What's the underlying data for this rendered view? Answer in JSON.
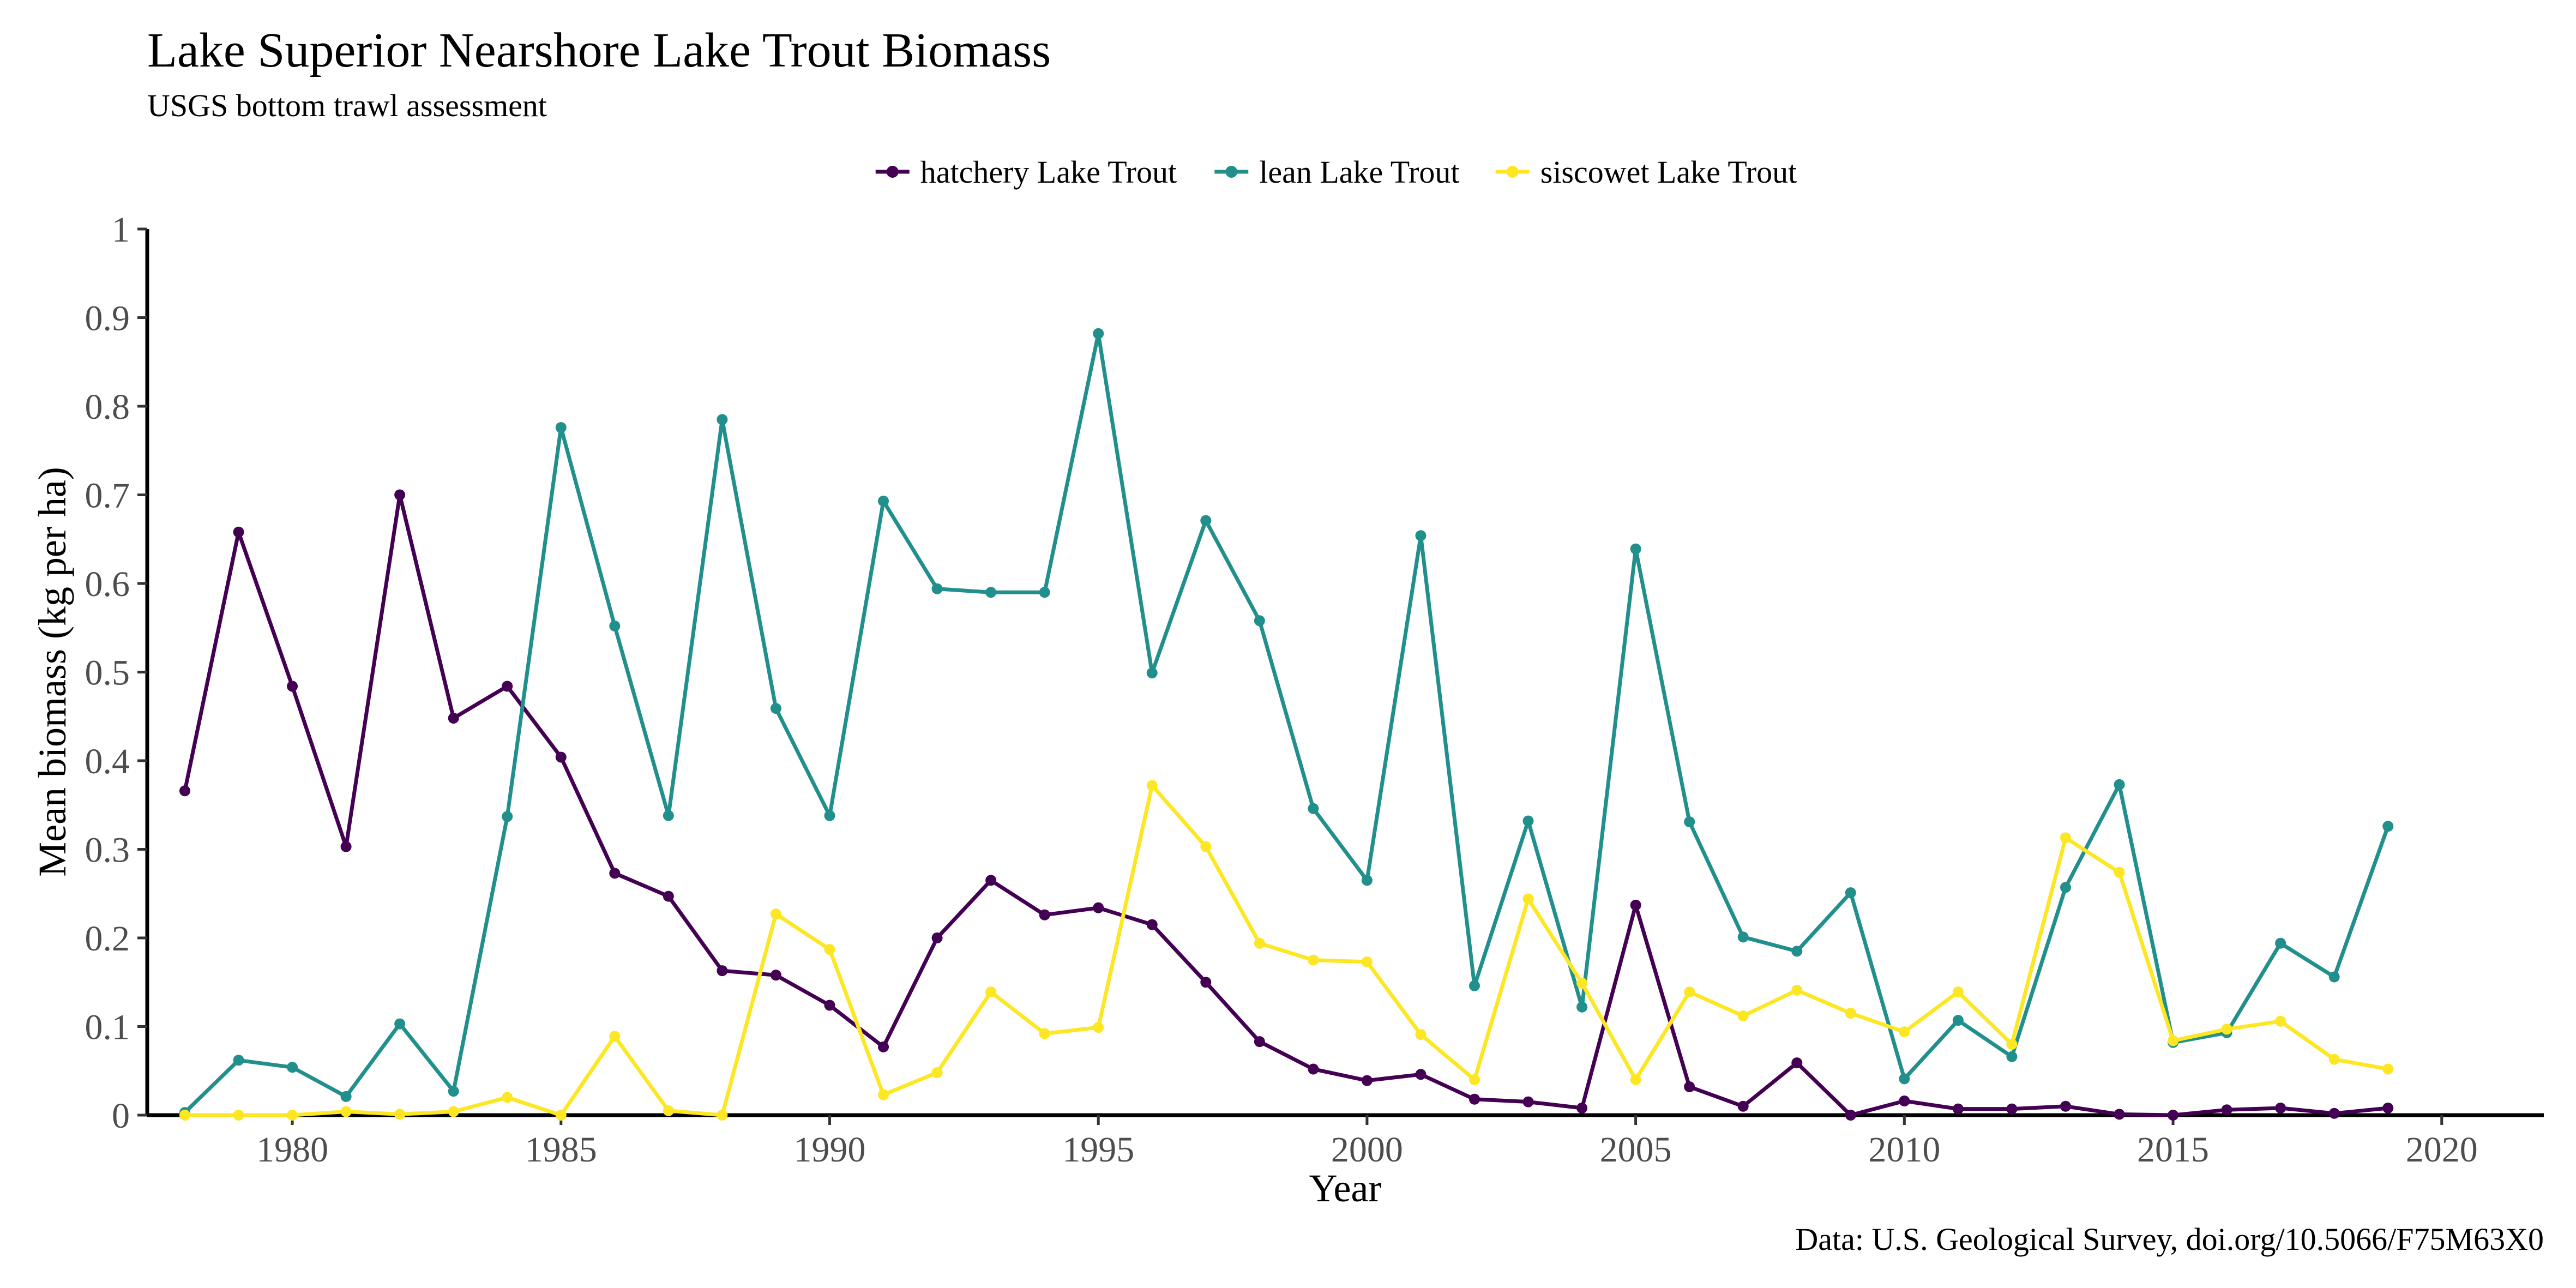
{
  "chart_data": {
    "type": "line",
    "title": "Lake Superior Nearshore Lake Trout Biomass",
    "subtitle": "USGS bottom trawl assessment",
    "xlabel": "Year",
    "ylabel": "Mean biomass (kg per ha)",
    "caption": "Data: U.S. Geological Survey, doi.org/10.5066/F75M63X0",
    "xlim": [
      1977.3,
      2021.9
    ],
    "ylim": [
      0,
      1
    ],
    "x_ticks": [
      1980,
      1985,
      1990,
      1995,
      2000,
      2005,
      2010,
      2015,
      2020
    ],
    "y_ticks": [
      0,
      0.1,
      0.2,
      0.3,
      0.4,
      0.5,
      0.6,
      0.7,
      0.8,
      0.9,
      1
    ],
    "y_tick_labels": [
      "0",
      "0.1",
      "0.2",
      "0.3",
      "0.4",
      "0.5",
      "0.6",
      "0.7",
      "0.8",
      "0.9",
      "1"
    ],
    "grid": false,
    "legend_position": "top",
    "x": [
      1978,
      1979,
      1980,
      1981,
      1982,
      1983,
      1984,
      1985,
      1986,
      1987,
      1988,
      1989,
      1990,
      1991,
      1992,
      1993,
      1994,
      1995,
      1996,
      1997,
      1998,
      1999,
      2000,
      2001,
      2002,
      2003,
      2004,
      2005,
      2006,
      2007,
      2008,
      2009,
      2010,
      2011,
      2012,
      2013,
      2014,
      2015,
      2016,
      2017,
      2018,
      2019
    ],
    "series": [
      {
        "name": "hatchery Lake Trout",
        "color": "#440154",
        "values": [
          0.366,
          0.658,
          0.484,
          0.303,
          0.7,
          0.448,
          0.484,
          0.404,
          0.273,
          0.247,
          0.163,
          0.158,
          0.124,
          0.077,
          0.2,
          0.265,
          0.226,
          0.234,
          0.215,
          0.15,
          0.083,
          0.052,
          0.039,
          0.046,
          0.018,
          0.015,
          0.008,
          0.237,
          0.032,
          0.01,
          0.059,
          0.0,
          0.016,
          0.007,
          0.007,
          0.01,
          0.001,
          0.0,
          0.006,
          0.008,
          0.002,
          0.008
        ]
      },
      {
        "name": "lean Lake Trout",
        "color": "#21908C",
        "values": [
          0.003,
          0.062,
          0.054,
          0.021,
          0.103,
          0.027,
          0.337,
          0.776,
          0.552,
          0.338,
          0.785,
          0.459,
          0.338,
          0.693,
          0.594,
          0.59,
          0.59,
          0.882,
          0.499,
          0.671,
          0.558,
          0.346,
          0.265,
          0.654,
          0.146,
          0.332,
          0.122,
          0.639,
          0.331,
          0.201,
          0.185,
          0.251,
          0.041,
          0.107,
          0.066,
          0.257,
          0.373,
          0.082,
          0.093,
          0.194,
          0.156,
          0.326
        ]
      },
      {
        "name": "siscowet Lake Trout",
        "color": "#FDE725",
        "values": [
          0.0,
          0.0,
          0.0,
          0.004,
          0.001,
          0.004,
          0.02,
          0.0,
          0.089,
          0.005,
          0.0,
          0.227,
          0.187,
          0.023,
          0.048,
          0.139,
          0.092,
          0.099,
          0.372,
          0.303,
          0.194,
          0.175,
          0.173,
          0.091,
          0.04,
          0.244,
          0.149,
          0.04,
          0.139,
          0.112,
          0.141,
          0.115,
          0.094,
          0.139,
          0.08,
          0.313,
          0.274,
          0.084,
          0.097,
          0.106,
          0.063,
          0.052
        ]
      }
    ]
  }
}
